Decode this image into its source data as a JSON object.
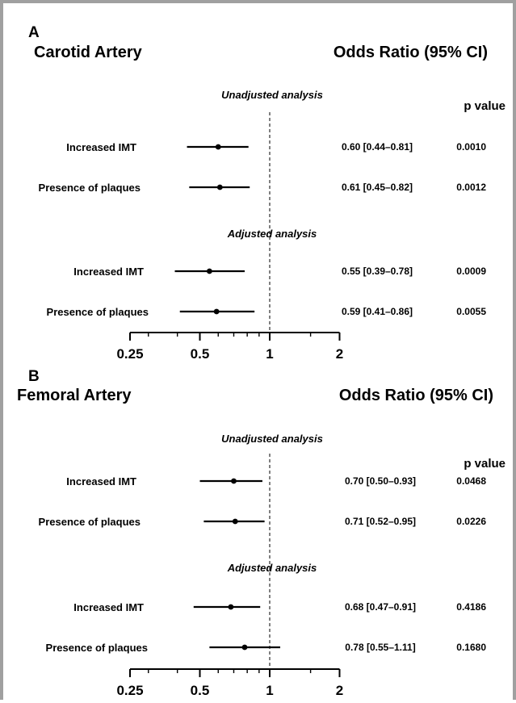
{
  "chart_data": [
    {
      "type": "forest",
      "panel": "A",
      "title": "Carotid Artery",
      "header": "Odds Ratio (95% CI)",
      "pvalue_header": "p value",
      "x_scale": "log2",
      "xlim": [
        0.25,
        2
      ],
      "x_ticks": [
        "0.25",
        "0.5",
        "1",
        "2"
      ],
      "reference_line": 1,
      "groups": [
        {
          "label": "Unadjusted analysis",
          "rows": [
            {
              "label": "Increased IMT",
              "or": 0.6,
              "lo": 0.44,
              "hi": 0.81,
              "text": "0.60 [0.44–0.81]",
              "p": "0.0010"
            },
            {
              "label": "Presence of plaques",
              "or": 0.61,
              "lo": 0.45,
              "hi": 0.82,
              "text": "0.61 [0.45–0.82]",
              "p": "0.0012"
            }
          ]
        },
        {
          "label": "Adjusted analysis",
          "rows": [
            {
              "label": "Increased IMT",
              "or": 0.55,
              "lo": 0.39,
              "hi": 0.78,
              "text": "0.55 [0.39–0.78]",
              "p": "0.0009"
            },
            {
              "label": "Presence of plaques",
              "or": 0.59,
              "lo": 0.41,
              "hi": 0.86,
              "text": "0.59 [0.41–0.86]",
              "p": "0.0055"
            }
          ]
        }
      ]
    },
    {
      "type": "forest",
      "panel": "B",
      "title": "Femoral Artery",
      "header": "Odds Ratio (95% CI)",
      "pvalue_header": "p value",
      "x_scale": "log2",
      "xlim": [
        0.25,
        2
      ],
      "x_ticks": [
        "0.25",
        "0.5",
        "1",
        "2"
      ],
      "reference_line": 1,
      "groups": [
        {
          "label": "Unadjusted analysis",
          "rows": [
            {
              "label": "Increased IMT",
              "or": 0.7,
              "lo": 0.5,
              "hi": 0.93,
              "text": "0.70 [0.50–0.93]",
              "p": "0.0468"
            },
            {
              "label": "Presence of plaques",
              "or": 0.71,
              "lo": 0.52,
              "hi": 0.95,
              "text": "0.71 [0.52–0.95]",
              "p": "0.0226"
            }
          ]
        },
        {
          "label": "Adjusted analysis",
          "rows": [
            {
              "label": "Increased IMT",
              "or": 0.68,
              "lo": 0.47,
              "hi": 0.91,
              "text": "0.68 [0.47–0.91]",
              "p": "0.4186"
            },
            {
              "label": "Presence of plaques",
              "or": 0.78,
              "lo": 0.55,
              "hi": 1.11,
              "text": "0.78 [0.55–1.11]",
              "p": "0.1680"
            }
          ]
        }
      ]
    }
  ]
}
